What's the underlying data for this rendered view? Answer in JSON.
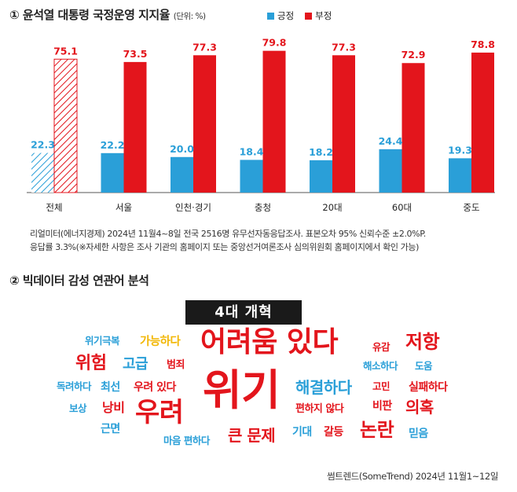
{
  "section1": {
    "title": "① 윤석열 대통령 국정운영 지지율",
    "unit": "(단위: %)",
    "legend": {
      "positive": "긍정",
      "negative": "부정"
    }
  },
  "colors": {
    "positive": "#2a9fd8",
    "negative": "#e3151c",
    "positive_label": "#2a9fd8",
    "negative_label": "#e3151c"
  },
  "chart_data": {
    "type": "bar",
    "categories": [
      "전체",
      "서울",
      "인천·경기",
      "충청",
      "20대",
      "60대",
      "중도"
    ],
    "series": [
      {
        "name": "긍정",
        "values": [
          22.3,
          22.2,
          20.0,
          18.4,
          18.2,
          24.4,
          19.3
        ]
      },
      {
        "name": "부정",
        "values": [
          75.1,
          73.5,
          77.3,
          79.8,
          77.3,
          72.9,
          78.8
        ]
      }
    ],
    "value_labels": {
      "긍정": [
        "22.3",
        "22.2",
        "20.0",
        "18.4",
        "18.2",
        "24.4",
        "19.3"
      ],
      "부정": [
        "75.1",
        "73.5",
        "77.3",
        "79.8",
        "77.3",
        "72.9",
        "78.8"
      ]
    },
    "hatched_category": "전체",
    "ylim": [
      0,
      85
    ],
    "grid": false,
    "legend_position": "top"
  },
  "notes": {
    "line1": "리얼미터(에너지경제) 2024년 11월4~8일 전국 2516명 유무선자동응답조사. 표본오차 95% 신뢰수준 ±2.0%P.",
    "line2": "응답률 3.3%(※자세한 사항은 조사 기관의 홈페이지 또는 중앙선거여론조사 심의위원회 홈페이지에서 확인 가능)"
  },
  "section2": {
    "title": "② 빅데이터 감성 연관어 분석",
    "keyword_heading": "4대 개혁",
    "words": [
      {
        "text": "위기극복",
        "color": "#2a9fd8"
      },
      {
        "text": "가능하다",
        "color": "#f2b705"
      },
      {
        "text": "어려움 있다",
        "color": "#e3151c"
      },
      {
        "text": "유감",
        "color": "#e3151c"
      },
      {
        "text": "저항",
        "color": "#e3151c"
      },
      {
        "text": "위험",
        "color": "#e3151c"
      },
      {
        "text": "고급",
        "color": "#2a9fd8"
      },
      {
        "text": "범죄",
        "color": "#e3151c"
      },
      {
        "text": "해소하다",
        "color": "#2a9fd8"
      },
      {
        "text": "도움",
        "color": "#2a9fd8"
      },
      {
        "text": "독려하다",
        "color": "#2a9fd8"
      },
      {
        "text": "최선",
        "color": "#2a9fd8"
      },
      {
        "text": "우려 있다",
        "color": "#e3151c"
      },
      {
        "text": "위기",
        "color": "#e3151c"
      },
      {
        "text": "해결하다",
        "color": "#2a9fd8"
      },
      {
        "text": "고민",
        "color": "#e3151c"
      },
      {
        "text": "실패하다",
        "color": "#e3151c"
      },
      {
        "text": "보상",
        "color": "#2a9fd8"
      },
      {
        "text": "낭비",
        "color": "#e3151c"
      },
      {
        "text": "우려",
        "color": "#e3151c"
      },
      {
        "text": "편하지 않다",
        "color": "#e3151c"
      },
      {
        "text": "비판",
        "color": "#e3151c"
      },
      {
        "text": "의혹",
        "color": "#e3151c"
      },
      {
        "text": "근면",
        "color": "#2a9fd8"
      },
      {
        "text": "마음 편하다",
        "color": "#2a9fd8"
      },
      {
        "text": "큰 문제",
        "color": "#e3151c"
      },
      {
        "text": "기대",
        "color": "#2a9fd8"
      },
      {
        "text": "갈등",
        "color": "#e3151c"
      },
      {
        "text": "논란",
        "color": "#e3151c"
      },
      {
        "text": "믿음",
        "color": "#2a9fd8"
      }
    ]
  },
  "source": "썸트렌드(SomeTrend) 2024년 11월1~12일"
}
